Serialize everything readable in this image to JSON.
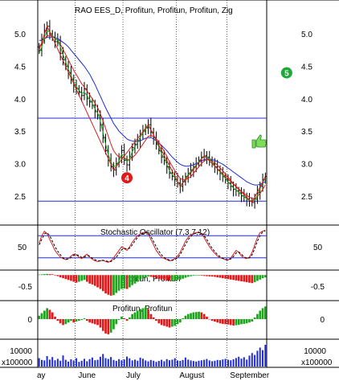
{
  "chart_data": [
    {
      "type": "candlestick",
      "title": "RAO EES_D, Profitun, Profitun, Profitun, Zig",
      "x_labels": [
        "ay",
        "June",
        "July",
        "August",
        "September"
      ],
      "y_ticks": [
        "5.0",
        "4.5",
        "4.0",
        "3.5",
        "3.0",
        "2.5"
      ],
      "ylim": [
        2.2,
        5.3
      ],
      "horizontal_levels": [
        3.7,
        2.42
      ],
      "markers": [
        {
          "label": "4",
          "color": "#e0191b",
          "x_index": 33,
          "y": 2.78
        },
        {
          "label": "5",
          "color": "#1ea83a",
          "x_index": 93,
          "y": 4.4
        }
      ],
      "close": [
        4.75,
        4.92,
        5.05,
        5.12,
        5.0,
        4.95,
        4.88,
        4.9,
        4.7,
        4.6,
        4.5,
        4.4,
        4.3,
        4.2,
        4.15,
        4.1,
        4.05,
        4.15,
        4.0,
        3.95,
        3.9,
        3.8,
        3.75,
        3.6,
        3.4,
        3.2,
        3.05,
        2.95,
        2.9,
        3.0,
        3.1,
        3.2,
        3.05,
        2.98,
        3.1,
        3.25,
        3.3,
        3.35,
        3.45,
        3.5,
        3.55,
        3.6,
        3.48,
        3.4,
        3.3,
        3.2,
        3.1,
        3.05,
        2.95,
        2.85,
        2.8,
        2.75,
        2.7,
        2.65,
        2.72,
        2.8,
        2.85,
        2.9,
        2.95,
        3.0,
        3.05,
        3.1,
        3.12,
        3.1,
        3.05,
        3.0,
        2.95,
        2.9,
        2.85,
        2.8,
        2.75,
        2.7,
        2.65,
        2.6,
        2.58,
        2.55,
        2.5,
        2.48,
        2.45,
        2.42,
        2.4,
        2.45,
        2.55,
        2.65,
        2.75,
        2.8
      ],
      "zigzag": [
        [
          0,
          4.75
        ],
        [
          3,
          5.12
        ],
        [
          28,
          2.9
        ],
        [
          41,
          3.6
        ],
        [
          53,
          2.65
        ],
        [
          62,
          3.12
        ],
        [
          80,
          2.4
        ],
        [
          85,
          2.8
        ]
      ],
      "ma_blue": [
        4.9,
        4.9,
        4.92,
        4.95,
        4.95,
        4.95,
        4.94,
        4.93,
        4.9,
        4.87,
        4.84,
        4.8,
        4.75,
        4.7,
        4.65,
        4.6,
        4.55,
        4.5,
        4.44,
        4.38,
        4.3,
        4.22,
        4.13,
        4.04,
        3.95,
        3.86,
        3.78,
        3.7,
        3.62,
        3.56,
        3.5,
        3.46,
        3.42,
        3.38,
        3.36,
        3.35,
        3.34,
        3.34,
        3.35,
        3.37,
        3.39,
        3.4,
        3.4,
        3.38,
        3.35,
        3.32,
        3.28,
        3.24,
        3.2,
        3.15,
        3.1,
        3.06,
        3.02,
        2.99,
        2.97,
        2.96,
        2.96,
        2.97,
        2.98,
        3.0,
        3.02,
        3.04,
        3.06,
        3.07,
        3.07,
        3.06,
        3.05,
        3.03,
        3.01,
        2.99,
        2.96,
        2.93,
        2.9,
        2.87,
        2.84,
        2.81,
        2.78,
        2.75,
        2.72,
        2.7,
        2.68,
        2.67,
        2.67,
        2.68,
        2.7,
        2.72
      ],
      "ma_red": [
        4.8,
        4.85,
        4.92,
        4.97,
        4.98,
        4.96,
        4.93,
        4.9,
        4.84,
        4.76,
        4.68,
        4.6,
        4.52,
        4.44,
        4.37,
        4.3,
        4.23,
        4.18,
        4.12,
        4.06,
        4.0,
        3.93,
        3.86,
        3.77,
        3.66,
        3.54,
        3.42,
        3.3,
        3.2,
        3.14,
        3.1,
        3.1,
        3.09,
        3.06,
        3.06,
        3.09,
        3.13,
        3.18,
        3.24,
        3.3,
        3.36,
        3.42,
        3.43,
        3.42,
        3.38,
        3.33,
        3.26,
        3.19,
        3.11,
        3.03,
        2.96,
        2.89,
        2.83,
        2.77,
        2.75,
        2.75,
        2.77,
        2.8,
        2.85,
        2.9,
        2.95,
        3.0,
        3.04,
        3.06,
        3.06,
        3.04,
        3.01,
        2.97,
        2.93,
        2.89,
        2.84,
        2.79,
        2.74,
        2.69,
        2.65,
        2.61,
        2.57,
        2.54,
        2.51,
        2.48,
        2.46,
        2.46,
        2.49,
        2.54,
        2.6,
        2.67
      ],
      "ma_green": [
        4.7,
        4.8,
        4.95,
        5.05,
        5.03,
        4.98,
        4.92,
        4.9,
        4.8,
        4.68,
        4.57,
        4.46,
        4.36,
        4.26,
        4.19,
        4.13,
        4.08,
        4.1,
        4.05,
        3.99,
        3.93,
        3.84,
        3.78,
        3.66,
        3.48,
        3.3,
        3.14,
        3.02,
        2.95,
        2.97,
        3.04,
        3.14,
        3.1,
        3.03,
        3.07,
        3.18,
        3.26,
        3.32,
        3.41,
        3.47,
        3.53,
        3.58,
        3.52,
        3.45,
        3.35,
        3.25,
        3.15,
        3.08,
        2.99,
        2.89,
        2.83,
        2.78,
        2.72,
        2.67,
        2.7,
        2.77,
        2.83,
        2.88,
        2.93,
        2.98,
        3.03,
        3.08,
        3.11,
        3.1,
        3.07,
        3.02,
        2.97,
        2.92,
        2.87,
        2.82,
        2.77,
        2.72,
        2.67,
        2.62,
        2.59,
        2.56,
        2.52,
        2.49,
        2.46,
        2.43,
        2.41,
        2.43,
        2.51,
        2.61,
        2.71,
        2.77
      ]
    },
    {
      "type": "line",
      "title": "Stochastic Oscillator (7,3,7,12)",
      "y_ticks": [
        "50"
      ],
      "ylim": [
        0,
        100
      ],
      "levels": [
        80,
        20
      ],
      "k": [
        60,
        80,
        92,
        85,
        70,
        55,
        40,
        30,
        22,
        18,
        15,
        18,
        25,
        30,
        28,
        22,
        18,
        25,
        30,
        22,
        16,
        12,
        10,
        12,
        14,
        10,
        8,
        12,
        20,
        30,
        40,
        50,
        45,
        40,
        50,
        62,
        72,
        80,
        85,
        88,
        90,
        85,
        70,
        55,
        40,
        30,
        22,
        18,
        15,
        12,
        14,
        18,
        25,
        35,
        50,
        65,
        75,
        82,
        86,
        88,
        90,
        85,
        75,
        62,
        50,
        40,
        32,
        25,
        20,
        18,
        15,
        14,
        20,
        30,
        40,
        35,
        25,
        20,
        18,
        22,
        35,
        55,
        75,
        88,
        92,
        95
      ],
      "d": [
        55,
        70,
        85,
        88,
        80,
        65,
        50,
        38,
        28,
        20,
        17,
        17,
        21,
        27,
        29,
        26,
        21,
        22,
        26,
        25,
        19,
        15,
        12,
        12,
        13,
        12,
        10,
        10,
        15,
        22,
        32,
        42,
        46,
        44,
        46,
        55,
        66,
        75,
        82,
        86,
        89,
        87,
        78,
        64,
        50,
        38,
        28,
        21,
        17,
        14,
        13,
        15,
        20,
        29,
        42,
        56,
        69,
        78,
        84,
        87,
        89,
        87,
        80,
        70,
        57,
        46,
        37,
        29,
        23,
        19,
        16,
        15,
        17,
        24,
        33,
        36,
        30,
        23,
        19,
        20,
        28,
        45,
        65,
        80,
        90,
        93
      ]
    },
    {
      "type": "bar",
      "title": "Profitun, Profitun",
      "y_ticks": [
        "-0.5"
      ],
      "ylim": [
        -1.0,
        0.15
      ],
      "values": [
        0.02,
        0.03,
        0.04,
        0.05,
        0.04,
        0.03,
        -0.02,
        -0.05,
        -0.1,
        -0.14,
        -0.18,
        -0.22,
        -0.26,
        -0.3,
        -0.34,
        -0.3,
        -0.26,
        -0.22,
        -0.3,
        -0.38,
        -0.42,
        -0.48,
        -0.55,
        -0.62,
        -0.72,
        -0.82,
        -0.88,
        -0.92,
        -0.9,
        -0.8,
        -0.7,
        -0.62,
        -0.6,
        -0.62,
        -0.55,
        -0.45,
        -0.38,
        -0.3,
        -0.22,
        -0.15,
        -0.1,
        -0.06,
        -0.08,
        -0.1,
        -0.14,
        -0.18,
        -0.2,
        -0.22,
        -0.24,
        -0.26,
        -0.26,
        -0.24,
        -0.22,
        -0.2,
        -0.16,
        -0.12,
        -0.08,
        -0.05,
        -0.03,
        -0.02,
        -0.02,
        -0.03,
        -0.04,
        -0.05,
        -0.06,
        -0.07,
        -0.08,
        -0.1,
        -0.12,
        -0.14,
        -0.16,
        -0.18,
        -0.2,
        -0.22,
        -0.24,
        -0.26,
        -0.28,
        -0.3,
        -0.32,
        -0.34,
        -0.36,
        -0.32,
        -0.26,
        -0.2,
        -0.14,
        -0.1
      ]
    },
    {
      "type": "bar",
      "title": "Profitun, Profitun",
      "y_ticks": [
        "0"
      ],
      "ylim": [
        -1.0,
        1.0
      ],
      "values": [
        0.2,
        0.35,
        0.5,
        0.65,
        0.55,
        0.4,
        0.15,
        -0.1,
        -0.25,
        -0.35,
        -0.3,
        -0.2,
        -0.1,
        -0.2,
        -0.15,
        -0.1,
        -0.05,
        0.05,
        -0.1,
        -0.2,
        -0.25,
        -0.3,
        -0.35,
        -0.5,
        -0.7,
        -0.85,
        -0.9,
        -0.8,
        -0.6,
        -0.3,
        -0.05,
        0.15,
        0.05,
        -0.1,
        0.1,
        0.3,
        0.4,
        0.5,
        0.6,
        0.65,
        0.7,
        0.6,
        0.3,
        0.1,
        -0.1,
        -0.25,
        -0.35,
        -0.4,
        -0.45,
        -0.5,
        -0.45,
        -0.4,
        -0.3,
        -0.2,
        0.05,
        0.2,
        0.3,
        0.35,
        0.4,
        0.42,
        0.44,
        0.4,
        0.3,
        0.15,
        0.0,
        -0.1,
        -0.15,
        -0.2,
        -0.25,
        -0.28,
        -0.3,
        -0.32,
        -0.35,
        -0.38,
        -0.36,
        -0.34,
        -0.3,
        -0.28,
        -0.25,
        -0.2,
        -0.15,
        0.1,
        0.3,
        0.5,
        0.65,
        0.75
      ]
    },
    {
      "type": "bar",
      "title": "",
      "y_ticks": [
        "10000"
      ],
      "unit_label": "x100000",
      "ylim": [
        0,
        16000
      ],
      "values": [
        5200,
        4100,
        3800,
        6500,
        4300,
        5900,
        3900,
        4800,
        3600,
        6900,
        4200,
        3100,
        4500,
        3800,
        5200,
        2900,
        3600,
        4800,
        3300,
        4600,
        5600,
        3900,
        4200,
        6100,
        7800,
        5200,
        4700,
        5900,
        4100,
        3500,
        4600,
        3900,
        4400,
        6200,
        5100,
        3800,
        4300,
        3600,
        5500,
        4900,
        3800,
        3200,
        4100,
        3600,
        2900,
        3500,
        4200,
        3300,
        4600,
        3900,
        4300,
        5200,
        3800,
        3500,
        4100,
        5600,
        4300,
        3800,
        3400,
        3100,
        3600,
        3900,
        4200,
        4700,
        3800,
        3300,
        3600,
        4100,
        3900,
        4400,
        4800,
        4200,
        3900,
        4500,
        5300,
        6100,
        4900,
        5800,
        4300,
        6800,
        8400,
        7200,
        9800,
        11800,
        10200,
        13500
      ]
    }
  ]
}
